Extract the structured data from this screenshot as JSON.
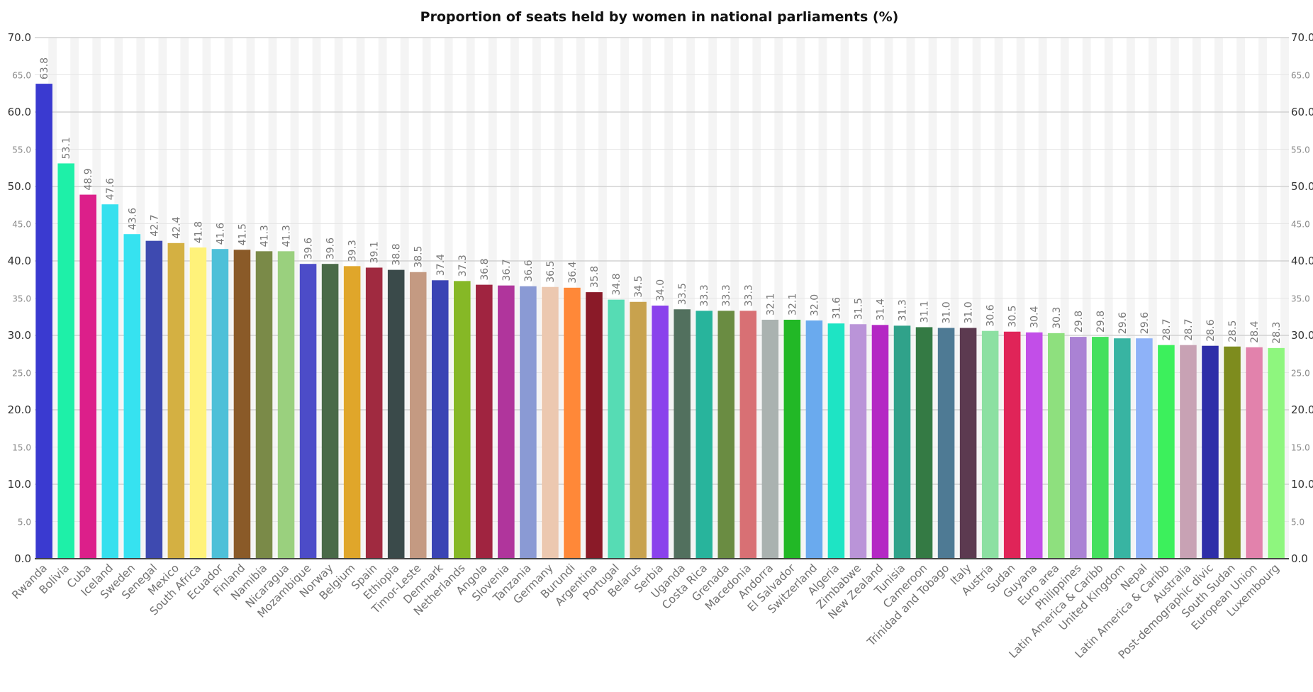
{
  "chart_data": {
    "type": "bar",
    "title": "Proportion of seats held by women in national parliaments (%)",
    "xlabel": "",
    "ylabel": "",
    "ylim": [
      0,
      70
    ],
    "y_ticks_major": [
      "0.0",
      "10.0",
      "20.0",
      "30.0",
      "40.0",
      "50.0",
      "60.0",
      "70.0"
    ],
    "y_ticks_minor": [
      "5.0",
      "15.0",
      "25.0",
      "35.0",
      "45.0",
      "55.0",
      "65.0"
    ],
    "grid": true,
    "y_axis_both_sides": true,
    "legend": "none",
    "categories": [
      "Rwanda",
      "Bolivia",
      "Cuba",
      "Iceland",
      "Sweden",
      "Senegal",
      "Mexico",
      "South Africa",
      "Ecuador",
      "Finland",
      "Namibia",
      "Nicaragua",
      "Mozambique",
      "Norway",
      "Belgium",
      "Spain",
      "Ethiopia",
      "Timor-Leste",
      "Denmark",
      "Netherlands",
      "Angola",
      "Slovenia",
      "Tanzania",
      "Germany",
      "Burundi",
      "Argentina",
      "Portugal",
      "Belarus",
      "Serbia",
      "Uganda",
      "Costa Rica",
      "Grenada",
      "Macedonia",
      "Andorra",
      "El Salvador",
      "Switzerland",
      "Algeria",
      "Zimbabwe",
      "New Zealand",
      "Tunisia",
      "Cameroon",
      "Trinidad and Tobago",
      "Italy",
      "Austria",
      "Sudan",
      "Guyana",
      "Euro area",
      "Philippines",
      "Latin America & Caribb",
      "United Kingdom",
      "Nepal",
      "Latin America & Caribb",
      "Australia",
      "Post-demographic divic",
      "South Sudan",
      "European Union",
      "Luxembourg"
    ],
    "values": [
      63.8,
      53.1,
      48.9,
      47.6,
      43.6,
      42.7,
      42.4,
      41.8,
      41.6,
      41.5,
      41.3,
      41.3,
      39.6,
      39.6,
      39.3,
      39.1,
      38.8,
      38.5,
      37.4,
      37.3,
      36.8,
      36.7,
      36.6,
      36.5,
      36.4,
      35.8,
      34.8,
      34.5,
      34.0,
      33.5,
      33.3,
      33.3,
      33.3,
      32.1,
      32.1,
      32.0,
      31.6,
      31.5,
      31.4,
      31.3,
      31.1,
      31.0,
      31.0,
      30.6,
      30.5,
      30.4,
      30.3,
      29.8,
      29.8,
      29.6,
      29.6,
      28.7,
      28.7,
      28.6,
      28.5,
      28.4,
      28.3
    ],
    "value_labels": [
      "63.8",
      "53.1",
      "48.9",
      "47.6",
      "43.6",
      "42.7",
      "42.4",
      "41.8",
      "41.6",
      "41.5",
      "41.3",
      "41.3",
      "39.6",
      "39.6",
      "39.3",
      "39.1",
      "38.8",
      "38.5",
      "37.4",
      "37.3",
      "36.8",
      "36.7",
      "36.6",
      "36.5",
      "36.4",
      "35.8",
      "34.8",
      "34.5",
      "34.0",
      "33.5",
      "33.3",
      "33.3",
      "33.3",
      "32.1",
      "32.1",
      "32.0",
      "31.6",
      "31.5",
      "31.4",
      "31.3",
      "31.1",
      "31.0",
      "31.0",
      "30.6",
      "30.5",
      "30.4",
      "30.3",
      "29.8",
      "29.8",
      "29.6",
      "29.6",
      "28.7",
      "28.7",
      "28.6",
      "28.5",
      "28.4",
      "28.3"
    ],
    "colors": [
      "#3a3ad0",
      "#1ef0a8",
      "#dc1f8a",
      "#36e0ee",
      "#36e2f0",
      "#3e4ab0",
      "#d4b042",
      "#fff27a",
      "#4ec0d8",
      "#8a5a28",
      "#7a8a48",
      "#9ad07e",
      "#4c4cc8",
      "#4a6a48",
      "#e0a62a",
      "#a02a40",
      "#3a4a4a",
      "#c49a82",
      "#3a44b4",
      "#86b826",
      "#a02440",
      "#b0359c",
      "#8a9ad4",
      "#ecc8b0",
      "#ff8838",
      "#8a1a28",
      "#56dcb4",
      "#c8a24e",
      "#8a42ec",
      "#52705e",
      "#28b49c",
      "#6a8c42",
      "#d87074",
      "#aab2b0",
      "#22b826",
      "#6aaaee",
      "#1ee4c4",
      "#ba94d8",
      "#b428c4",
      "#30a28a",
      "#347a44",
      "#4e7a94",
      "#5c3a50",
      "#8ce0a2",
      "#e02458",
      "#c24ee8",
      "#8ee07e",
      "#aa82d4",
      "#44e05e",
      "#38b4a2",
      "#8eb2f8",
      "#3cf05c",
      "#c8a2b4",
      "#2e2ea8",
      "#7e8c1e",
      "#e282ac",
      "#8ef67e"
    ]
  }
}
